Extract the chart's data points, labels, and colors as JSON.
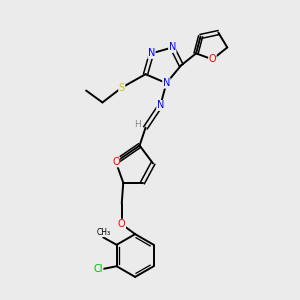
{
  "bg_color": "#ebebeb",
  "bond_color": "#000000",
  "atom_colors": {
    "N": "#0000ff",
    "O": "#ff0000",
    "S": "#cccc00",
    "Cl": "#00bb00",
    "H": "#888888",
    "C": "#000000"
  },
  "figsize": [
    3.0,
    3.0
  ],
  "dpi": 100
}
